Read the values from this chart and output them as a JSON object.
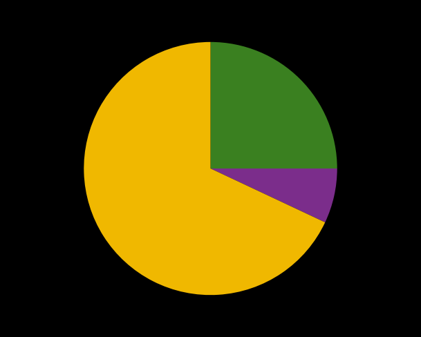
{
  "slices": [
    25.0,
    7.0,
    68.0
  ],
  "colors": [
    "#3A8020",
    "#7B2D8B",
    "#F0B800"
  ],
  "background_color": "#000000",
  "startangle": 90,
  "figsize": [
    6.09,
    4.88
  ],
  "dpi": 100
}
